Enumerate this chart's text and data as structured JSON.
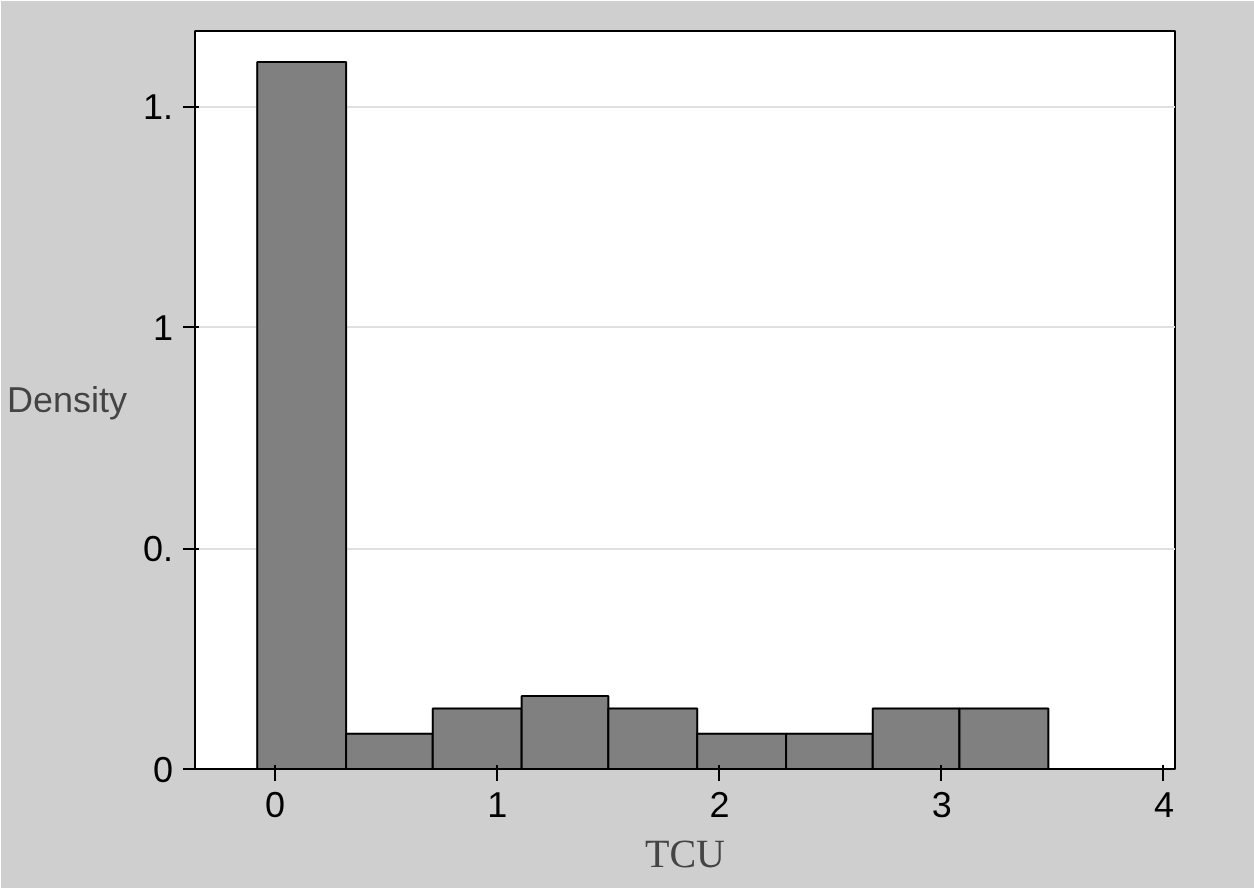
{
  "chart_data": {
    "type": "histogram",
    "xlabel": "TCU",
    "ylabel": "Density",
    "bins": [
      -0.08,
      0.32,
      0.71,
      1.11,
      1.5,
      1.9,
      2.3,
      2.69,
      3.08,
      3.48
    ],
    "values": [
      1.6,
      0.08,
      0.137,
      0.165,
      0.137,
      0.08,
      0.08,
      0.137,
      0.137
    ],
    "color": "#808080",
    "xlim": [
      -0.36,
      4.05
    ],
    "ylim": [
      0,
      1.67
    ],
    "xticks": [
      0,
      1,
      2,
      3,
      4
    ],
    "yticks": [
      {
        "value": 0,
        "label": "0"
      },
      {
        "value": 0.5,
        "label": "0."
      },
      {
        "value": 1,
        "label": "1"
      },
      {
        "value": 1.5,
        "label": "1."
      }
    ],
    "grid": "y"
  }
}
